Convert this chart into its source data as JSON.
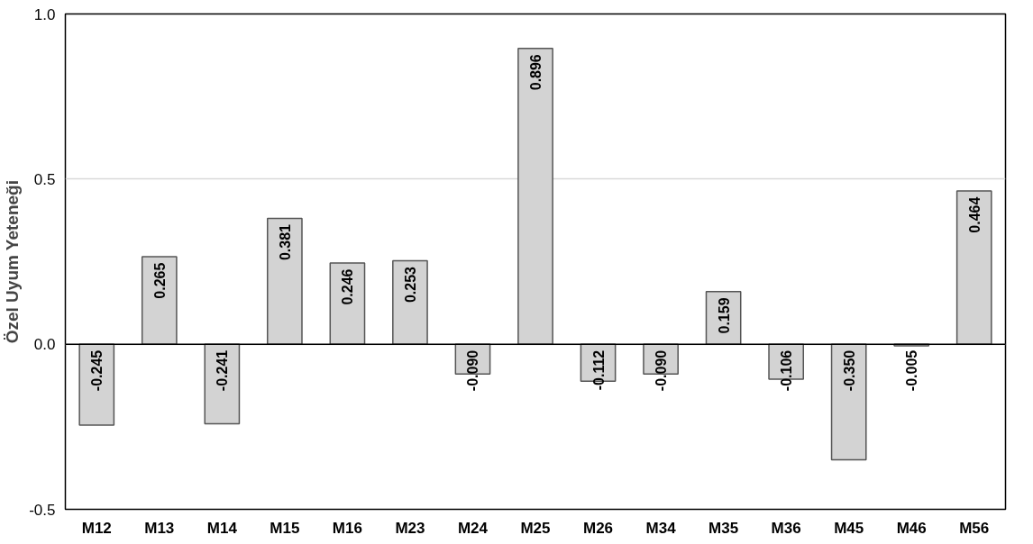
{
  "chart_data": {
    "type": "bar",
    "ylabel": "Özel Uyum Yeteneği",
    "categories": [
      "M12",
      "M13",
      "M14",
      "M15",
      "M16",
      "M23",
      "M24",
      "M25",
      "M26",
      "M34",
      "M35",
      "M36",
      "M45",
      "M46",
      "M56"
    ],
    "values": [
      -0.245,
      0.265,
      -0.241,
      0.381,
      0.246,
      0.253,
      -0.09,
      0.896,
      -0.112,
      -0.09,
      0.159,
      -0.106,
      -0.35,
      -0.005,
      0.464
    ],
    "value_labels": [
      "-0.245",
      "0.265",
      "-0.241",
      "0.381",
      "0.246",
      "0.253",
      "-0.090",
      "0.896",
      "-0.112",
      "-0.090",
      "0.159",
      "-0.106",
      "-0.350",
      "-0.005",
      "0.464"
    ],
    "color": "#d3d3d3",
    "ylim": [
      -0.5,
      1.0
    ],
    "yticks": [
      {
        "value": -0.5,
        "label": "-0.5"
      },
      {
        "value": 0,
        "label": "0.0"
      },
      {
        "value": 0.5,
        "label": "0.5"
      },
      {
        "value": 1.0,
        "label": "1.0"
      }
    ],
    "grid": "y",
    "ref_lines": [
      {
        "axis": "y",
        "value": 0,
        "color": "#000000"
      }
    ]
  }
}
